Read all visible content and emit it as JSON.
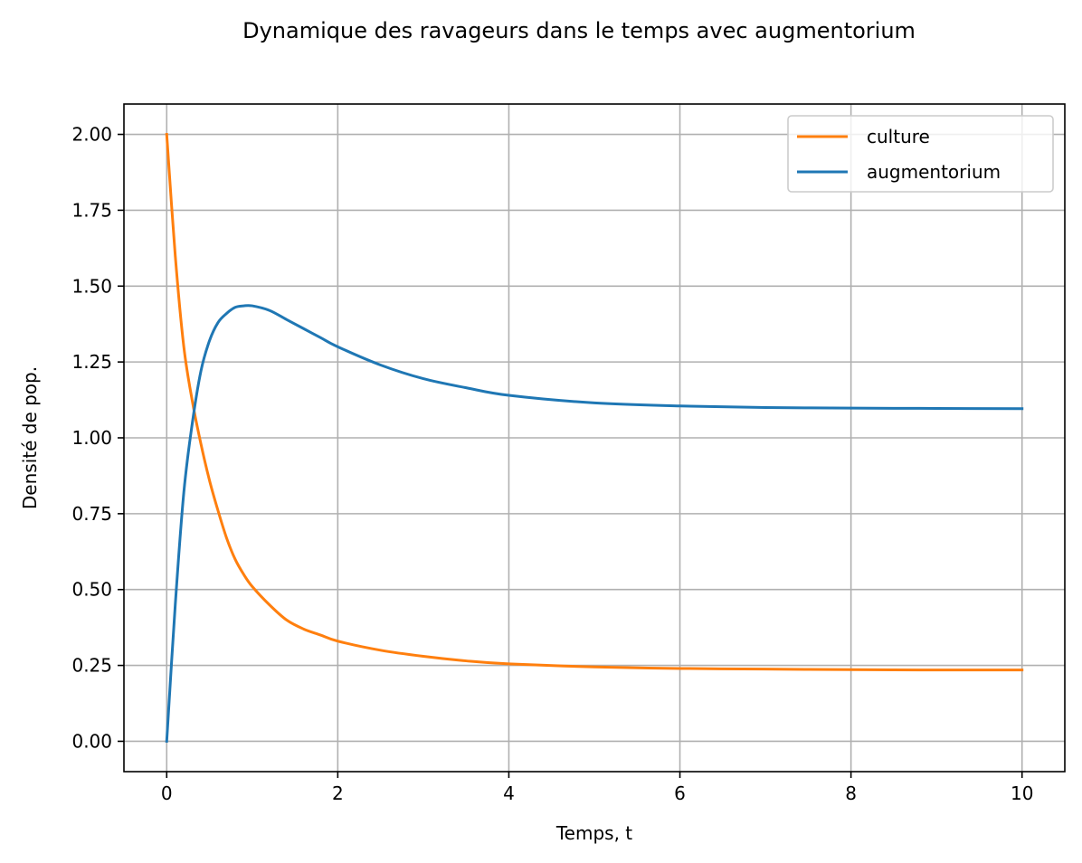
{
  "chart_data": {
    "type": "line",
    "title": "Dynamique des ravageurs dans le temps avec augmentorium",
    "xlabel": "Temps, t",
    "ylabel": "Densité de pop.",
    "xlim": [
      -0.5,
      10.5
    ],
    "ylim": [
      -0.1,
      2.1
    ],
    "grid": true,
    "legend_position": "top-right",
    "x_ticks": [
      0,
      2,
      4,
      6,
      8,
      10
    ],
    "x_tick_labels": [
      "0",
      "2",
      "4",
      "6",
      "8",
      "10"
    ],
    "y_ticks": [
      0,
      0.25,
      0.5,
      0.75,
      1.0,
      1.25,
      1.5,
      1.75,
      2.0
    ],
    "y_tick_labels": [
      "0.00",
      "0.25",
      "0.50",
      "0.75",
      "1.00",
      "1.25",
      "1.50",
      "1.75",
      "2.00"
    ],
    "series": [
      {
        "name": "culture",
        "color": "#ff7f0e",
        "x": [
          0,
          0.1,
          0.2,
          0.3,
          0.4,
          0.5,
          0.6,
          0.7,
          0.8,
          0.9,
          1.0,
          1.2,
          1.4,
          1.6,
          1.8,
          2.0,
          2.5,
          3.0,
          3.5,
          4.0,
          5.0,
          6.0,
          7.0,
          8.0,
          9.0,
          10.0
        ],
        "y": [
          2.0,
          1.6,
          1.3,
          1.12,
          0.98,
          0.86,
          0.76,
          0.67,
          0.6,
          0.55,
          0.51,
          0.45,
          0.4,
          0.37,
          0.35,
          0.33,
          0.3,
          0.28,
          0.265,
          0.255,
          0.245,
          0.24,
          0.238,
          0.236,
          0.235,
          0.235
        ]
      },
      {
        "name": "augmentorium",
        "color": "#1f77b4",
        "x": [
          0,
          0.1,
          0.2,
          0.3,
          0.4,
          0.5,
          0.6,
          0.7,
          0.8,
          0.9,
          1.0,
          1.2,
          1.4,
          1.6,
          1.8,
          2.0,
          2.5,
          3.0,
          3.5,
          4.0,
          5.0,
          6.0,
          7.0,
          8.0,
          9.0,
          10.0
        ],
        "y": [
          0.0,
          0.45,
          0.82,
          1.05,
          1.22,
          1.32,
          1.38,
          1.41,
          1.43,
          1.435,
          1.435,
          1.42,
          1.39,
          1.36,
          1.33,
          1.3,
          1.24,
          1.195,
          1.165,
          1.14,
          1.115,
          1.105,
          1.1,
          1.098,
          1.097,
          1.096
        ]
      }
    ]
  }
}
